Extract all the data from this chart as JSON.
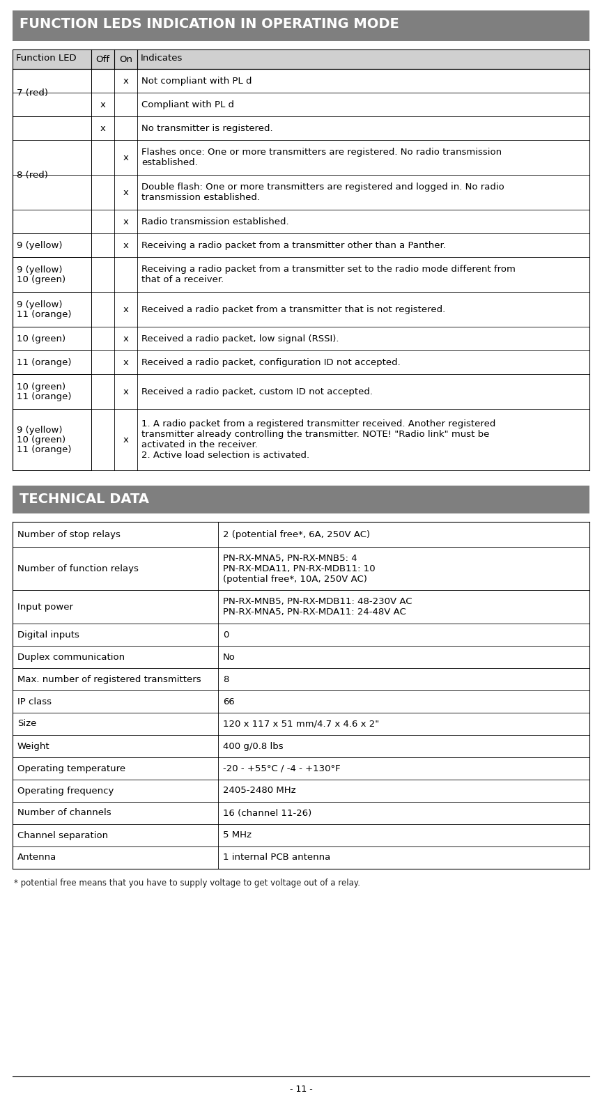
{
  "title1": "FUNCTION LEDS INDICATION IN OPERATING MODE",
  "title2": "TECHNICAL DATA",
  "header_bg": "#7f7f7f",
  "header_text_color": "#ffffff",
  "table_header_bg": "#d0d0d0",
  "row_bg_white": "#ffffff",
  "border_color": "#000000",
  "page_bg": "#ffffff",
  "footer_text": "- 11 -",
  "led_table_headers": [
    "Function LED",
    "Off",
    "On",
    "Indicates"
  ],
  "led_rows": [
    {
      "led": "7 (red)",
      "off": "",
      "on": "x",
      "text": "Not compliant with PL d",
      "rh": 34
    },
    {
      "led": "7 (red)",
      "off": "x",
      "on": "",
      "text": "Compliant with PL d",
      "rh": 34
    },
    {
      "led": "8 (red)",
      "off": "x",
      "on": "",
      "text": "No transmitter is registered.",
      "rh": 34
    },
    {
      "led": "8 (red)",
      "off": "",
      "on": "x",
      "text": "Flashes once: One or more transmitters are registered. No radio transmission\nestablished.",
      "rh": 50
    },
    {
      "led": "8 (red)",
      "off": "",
      "on": "x",
      "text": "Double flash: One or more transmitters are registered and logged in. No radio\ntransmission established.",
      "rh": 50
    },
    {
      "led": "8 (red)",
      "off": "",
      "on": "x",
      "text": "Radio transmission established.",
      "rh": 34
    },
    {
      "led": "9 (yellow)",
      "off": "",
      "on": "x",
      "text": "Receiving a radio packet from a transmitter other than a Panther.",
      "rh": 34
    },
    {
      "led": "9 (yellow)\n10 (green)",
      "off": "",
      "on": "",
      "text": "Receiving a radio packet from a transmitter set to the radio mode different from\nthat of a receiver.",
      "rh": 50
    },
    {
      "led": "9 (yellow)\n11 (orange)",
      "off": "",
      "on": "x",
      "text": "Received a radio packet from a transmitter that is not registered.",
      "rh": 50
    },
    {
      "led": "10 (green)",
      "off": "",
      "on": "x",
      "text": "Received a radio packet, low signal (RSSI).",
      "rh": 34
    },
    {
      "led": "11 (orange)",
      "off": "",
      "on": "x",
      "text": "Received a radio packet, configuration ID not accepted.",
      "rh": 34
    },
    {
      "led": "10 (green)\n11 (orange)",
      "off": "",
      "on": "x",
      "text": "Received a radio packet, custom ID not accepted.",
      "rh": 50
    },
    {
      "led": "9 (yellow)\n10 (green)\n11 (orange)",
      "off": "",
      "on": "x",
      "text": "1. A radio packet from a registered transmitter received. Another registered\ntransmitter already controlling the transmitter. NOTE! \"Radio link\" must be\nactivated in the receiver.\n2. Active load selection is activated.",
      "rh": 88
    }
  ],
  "tech_rows": [
    {
      "param": "Number of stop relays",
      "value": "2 (potential free*, 6A, 250V AC)",
      "rh": 36
    },
    {
      "param": "Number of function relays",
      "value": "PN-RX-MNA5, PN-RX-MNB5: 4\nPN-RX-MDA11, PN-RX-MDB11: 10\n(potential free*, 10A, 250V AC)",
      "rh": 62
    },
    {
      "param": "Input power",
      "value": "PN-RX-MNB5, PN-RX-MDB11: 48-230V AC\nPN-RX-MNA5, PN-RX-MDA11: 24-48V AC",
      "rh": 48
    },
    {
      "param": "Digital inputs",
      "value": "0",
      "rh": 32
    },
    {
      "param": "Duplex communication",
      "value": "No",
      "rh": 32
    },
    {
      "param": "Max. number of registered transmitters",
      "value": "8",
      "rh": 32
    },
    {
      "param": "IP class",
      "value": "66",
      "rh": 32
    },
    {
      "param": "Size",
      "value": "120 x 117 x 51 mm/4.7 x 4.6 x 2\"",
      "rh": 32
    },
    {
      "param": "Weight",
      "value": "400 g/0.8 lbs",
      "rh": 32
    },
    {
      "param": "Operating temperature",
      "value": "-20 - +55°C / -4 - +130°F",
      "rh": 32
    },
    {
      "param": "Operating frequency",
      "value": "2405-2480 MHz",
      "rh": 32
    },
    {
      "param": "Number of channels",
      "value": "16 (channel 11-26)",
      "rh": 32
    },
    {
      "param": "Channel separation",
      "value": "5 MHz",
      "rh": 32
    },
    {
      "param": "Antenna",
      "value": "1 internal PCB antenna",
      "rh": 32
    }
  ],
  "footnote": "* potential free means that you have to supply voltage to get voltage out of a relay."
}
